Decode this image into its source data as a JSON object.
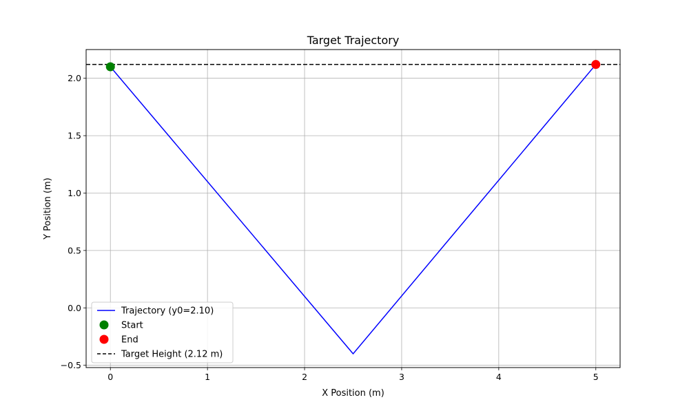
{
  "chart_data": {
    "type": "line",
    "title": "Target Trajectory",
    "xlabel": "X Position (m)",
    "ylabel": "Y Position (m)",
    "xlim": [
      -0.25,
      5.25
    ],
    "ylim": [
      -0.52,
      2.25
    ],
    "xticks": [
      0,
      1,
      2,
      3,
      4,
      5
    ],
    "xtick_labels": [
      "0",
      "1",
      "2",
      "3",
      "4",
      "5"
    ],
    "yticks": [
      -0.5,
      0.0,
      0.5,
      1.0,
      1.5,
      2.0
    ],
    "ytick_labels": [
      "−0.5",
      "0.0",
      "0.5",
      "1.0",
      "1.5",
      "2.0"
    ],
    "grid": true,
    "legend_position": "lower-left",
    "series": [
      {
        "name": "Trajectory (y0=2.10)",
        "kind": "line",
        "color": "#0000ff",
        "x": [
          0,
          2.5,
          5
        ],
        "y": [
          2.1,
          -0.4,
          2.12
        ]
      },
      {
        "name": "Start",
        "kind": "point",
        "color": "#008000",
        "x": [
          0
        ],
        "y": [
          2.1
        ]
      },
      {
        "name": "End",
        "kind": "point",
        "color": "#ff0000",
        "x": [
          5
        ],
        "y": [
          2.12
        ]
      },
      {
        "name": "Target Height (2.12 m)",
        "kind": "hline",
        "color": "#000000",
        "y": 2.12
      }
    ]
  }
}
